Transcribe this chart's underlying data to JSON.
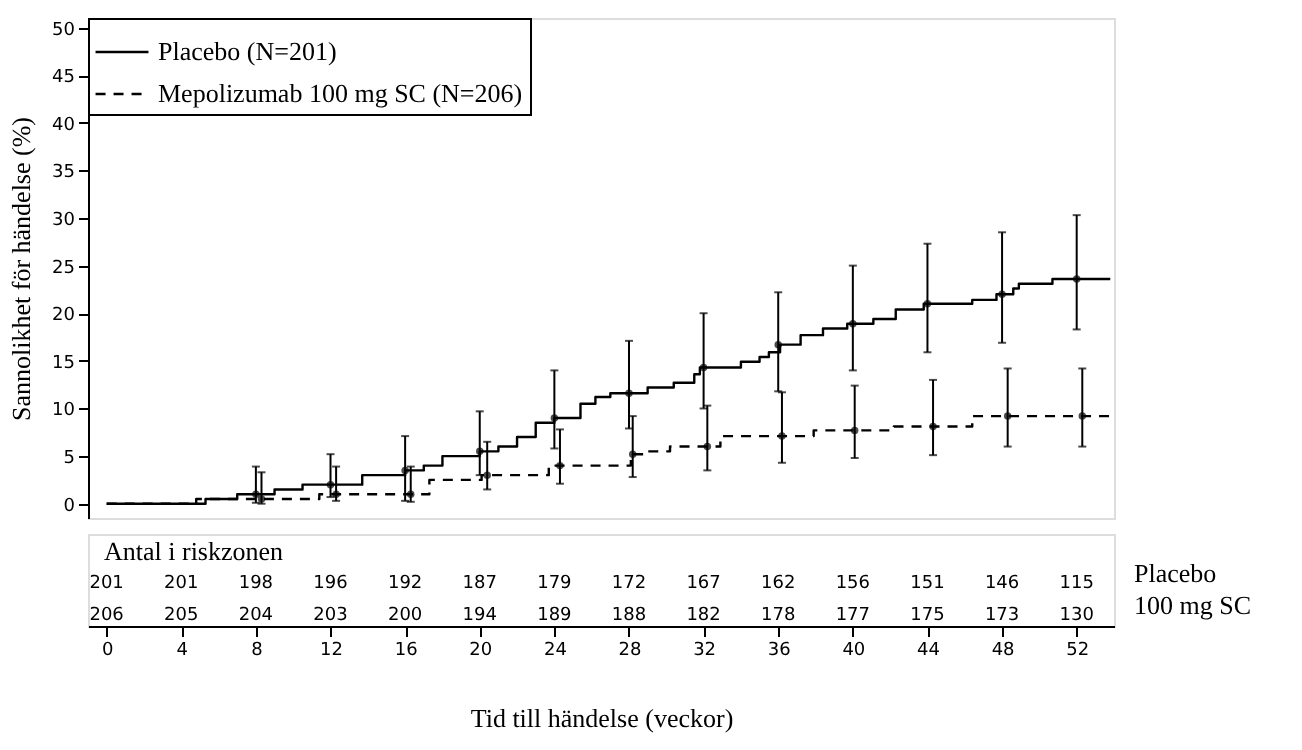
{
  "chart_data": {
    "type": "step",
    "xlabel": "Tid till händelse (veckor)",
    "ylabel": "Sannolikhet för händelse (%)",
    "xlim": [
      -1,
      54
    ],
    "xticks": [
      0,
      4,
      8,
      12,
      16,
      20,
      24,
      28,
      32,
      36,
      40,
      44,
      48,
      52
    ],
    "ylim": [
      -1.5,
      51
    ],
    "yticks": [
      0,
      5,
      10,
      15,
      20,
      25,
      30,
      35,
      40,
      45,
      50
    ],
    "grid": false,
    "legend": "top left",
    "series": [
      {
        "name": "Placebo (N=201)",
        "color": "#000000",
        "line_style": "solid",
        "x": [
          0,
          5.3,
          7,
          9,
          10.5,
          13.7,
          16,
          17,
          18,
          20,
          21,
          22,
          23,
          24,
          25.4,
          26.2,
          27,
          29,
          30.4,
          31.5,
          31.8,
          34,
          35,
          35.5,
          36.1,
          37.2,
          38.4,
          39.7,
          41.1,
          42.3,
          43.8,
          46.4,
          47.7,
          48.6,
          48.9,
          50.7,
          53.8
        ],
        "values": [
          0,
          0.5,
          1.0,
          1.5,
          2.0,
          3.0,
          3.5,
          4.0,
          5.0,
          5.5,
          6.0,
          7.0,
          8.5,
          9.0,
          10.5,
          11.2,
          11.6,
          12.2,
          12.7,
          13.6,
          14.3,
          14.9,
          15.4,
          15.9,
          16.7,
          17.7,
          18.4,
          18.9,
          19.4,
          20.4,
          21.0,
          21.4,
          22.0,
          22.6,
          23.1,
          23.6,
          23.6
        ]
      },
      {
        "name": "Mepolizumab 100 mg SC (N=206)",
        "color": "#000000",
        "line_style": "dashed",
        "x": [
          0,
          4.8,
          11.4,
          17.3,
          20.1,
          23.7,
          28.1,
          29,
          30.2,
          32.9,
          37.9,
          42.2,
          46.4,
          53.8
        ],
        "values": [
          0,
          0.5,
          1.0,
          2.5,
          3.0,
          4.0,
          5.2,
          5.5,
          6.0,
          7.1,
          7.7,
          8.1,
          9.2,
          9.2
        ]
      },
      {
        "type": "scatter",
        "color": "#000000",
        "x": [
          8,
          12,
          16,
          20,
          24,
          28,
          32,
          36,
          40,
          44,
          48,
          52
        ],
        "values": [
          1.0,
          2.0,
          3.5,
          5.5,
          9.0,
          11.6,
          14.3,
          16.7,
          18.9,
          21.0,
          22.0,
          23.6
        ],
        "errors": [
          [
            0.1,
            3.9
          ],
          [
            0.7,
            5.2
          ],
          [
            0.3,
            7.1
          ],
          [
            3.0,
            9.7
          ],
          [
            5.8,
            14.0
          ],
          [
            7.9,
            17.1
          ],
          [
            10.0,
            20.0
          ],
          [
            11.8,
            22.2
          ],
          [
            14.0,
            25.0
          ],
          [
            15.9,
            27.3
          ],
          [
            16.9,
            28.5
          ],
          [
            18.3,
            30.3
          ]
        ]
      },
      {
        "type": "scatter",
        "color": "#000000",
        "x": [
          8.3,
          12.3,
          16.3,
          20.4,
          24.3,
          28.2,
          32.2,
          36.2,
          40.1,
          44.3,
          48.3,
          52.3
        ],
        "values": [
          0.5,
          1.0,
          1.0,
          3.0,
          4.0,
          5.2,
          6.0,
          7.1,
          7.7,
          8.1,
          9.2,
          9.2
        ],
        "errors": [
          [
            0,
            3.3
          ],
          [
            0.3,
            3.9
          ],
          [
            0.2,
            3.9
          ],
          [
            1.5,
            6.5
          ],
          [
            2.1,
            7.8
          ],
          [
            2.8,
            9.2
          ],
          [
            3.5,
            10.3
          ],
          [
            4.3,
            11.7
          ],
          [
            4.8,
            12.4
          ],
          [
            5.1,
            13.0
          ],
          [
            6.0,
            14.2
          ],
          [
            6.0,
            14.2
          ]
        ]
      }
    ],
    "annotations": [
      "Antal i riskzonen",
      "Placebo",
      "201",
      "201",
      "198",
      "196",
      "192",
      "187",
      "179",
      "172",
      "167",
      "162",
      "156",
      "151",
      "146",
      "115",
      "100 mg SC",
      "206",
      "205",
      "204",
      "203",
      "200",
      "194",
      "189",
      "188",
      "182",
      "178",
      "177",
      "175",
      "173",
      "130"
    ]
  }
}
